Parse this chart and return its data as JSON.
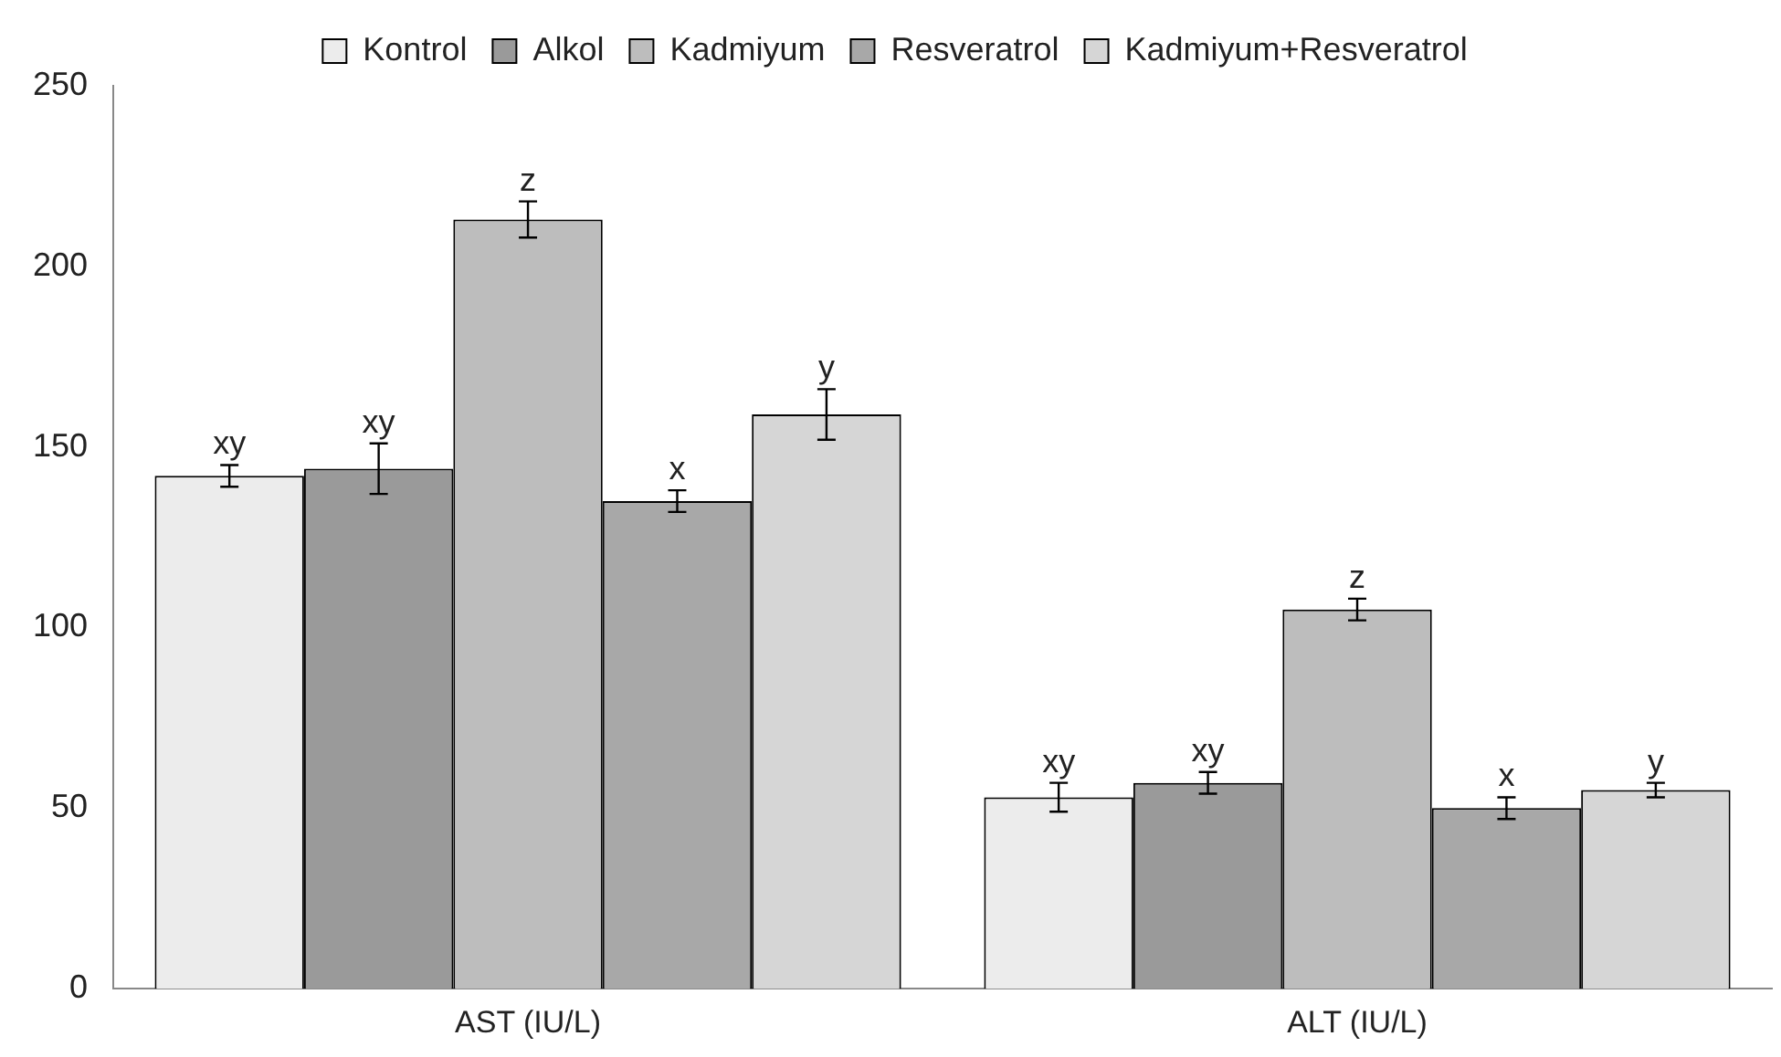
{
  "chart_data": {
    "type": "bar",
    "categories": [
      "AST (IU/L)",
      "ALT (IU/L)"
    ],
    "series": [
      {
        "name": "Kontrol",
        "color": "#ececec",
        "values": [
          142,
          53
        ],
        "errors": [
          3,
          4
        ],
        "value_labels": [
          "xy",
          "xy"
        ]
      },
      {
        "name": "Alkol",
        "color": "#9a9a9a",
        "values": [
          144,
          57
        ],
        "errors": [
          7,
          3
        ],
        "value_labels": [
          "xy",
          "xy"
        ]
      },
      {
        "name": "Kadmiyum",
        "color": "#bdbdbd",
        "values": [
          213,
          105
        ],
        "errors": [
          5,
          3
        ],
        "value_labels": [
          "z",
          "z"
        ]
      },
      {
        "name": "Resveratrol",
        "color": "#a8a8a8",
        "values": [
          135,
          50
        ],
        "errors": [
          3,
          3
        ],
        "value_labels": [
          "x",
          "x"
        ]
      },
      {
        "name": "Kadmiyum+Resveratrol",
        "color": "#d6d6d6",
        "values": [
          159,
          55
        ],
        "errors": [
          7,
          2
        ],
        "value_labels": [
          "y",
          "y"
        ]
      }
    ],
    "ylim": [
      0,
      250
    ],
    "yticks": [
      0,
      50,
      100,
      150,
      200,
      250
    ],
    "grid": false,
    "legend": "top"
  }
}
